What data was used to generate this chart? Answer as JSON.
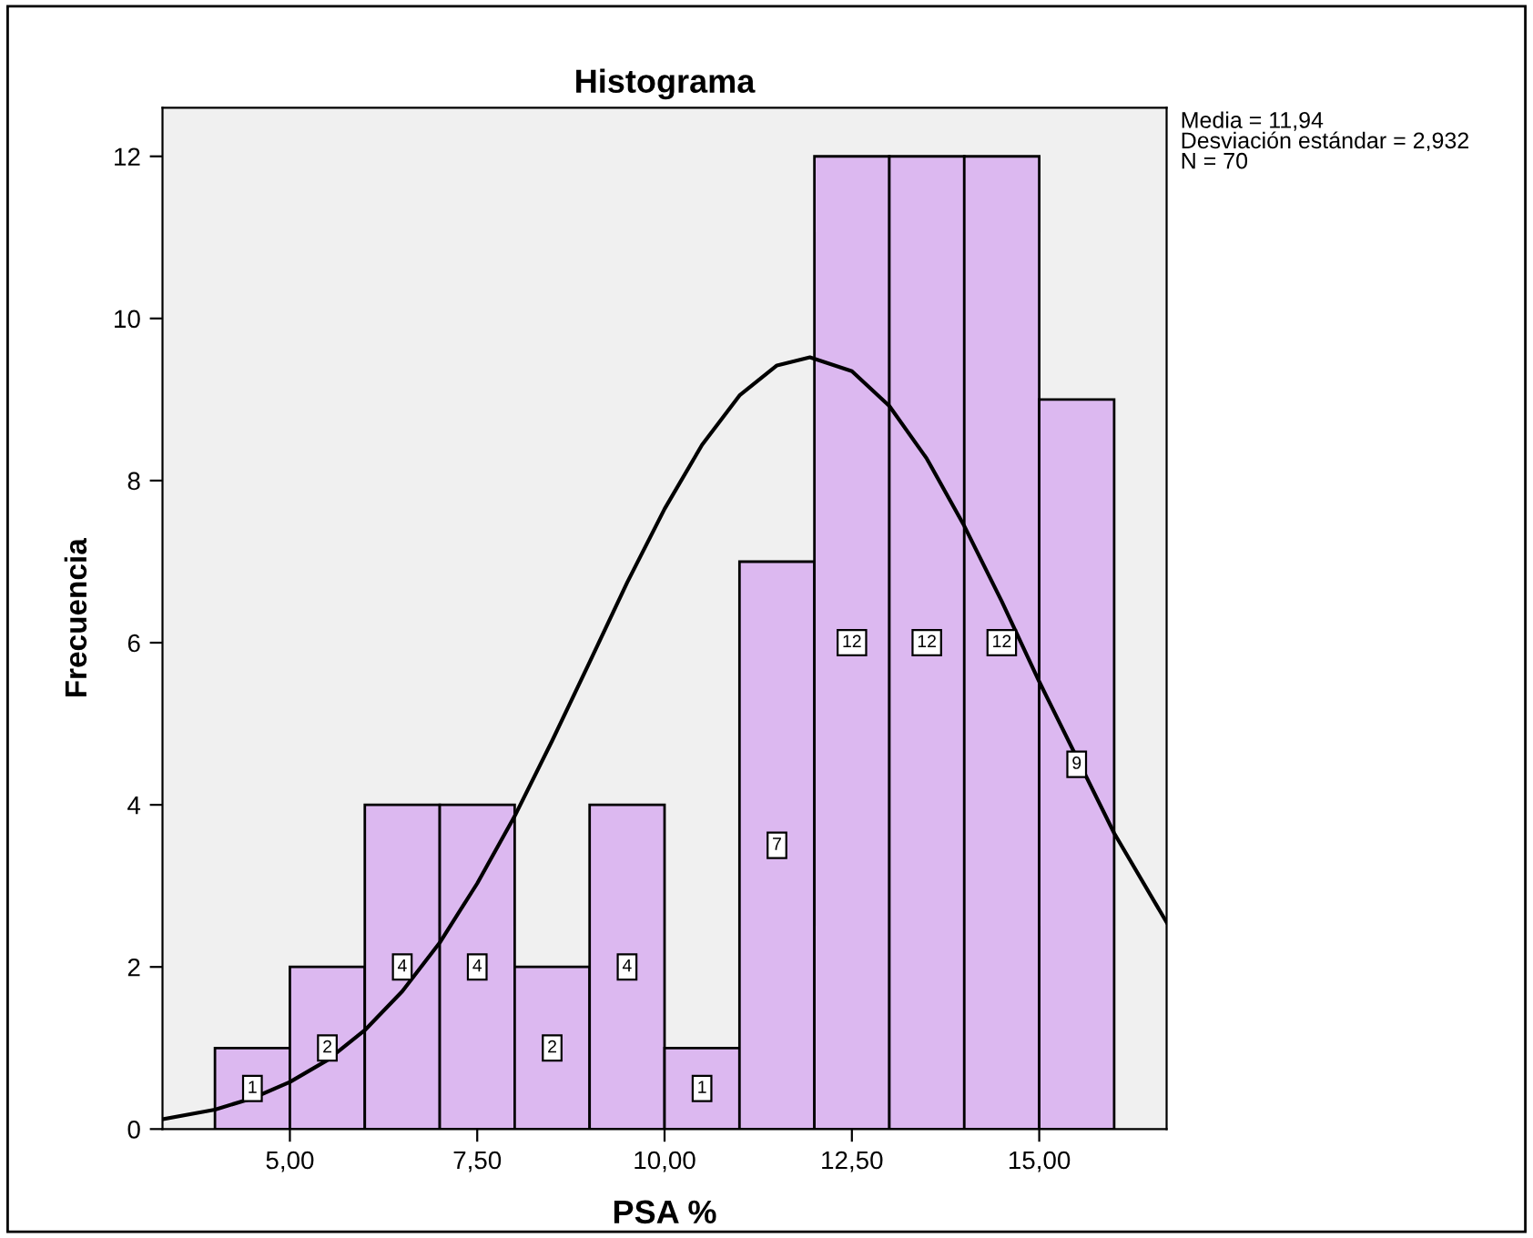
{
  "chart_data": {
    "type": "histogram",
    "title": "Histograma",
    "xlabel": "PSA %",
    "ylabel": "Frecuencia",
    "bins": [
      4,
      5,
      6,
      7,
      8,
      9,
      10,
      11,
      12,
      13,
      14,
      15,
      16
    ],
    "values": [
      1,
      2,
      4,
      4,
      2,
      4,
      1,
      7,
      12,
      12,
      12,
      9
    ],
    "color": "#dcb8f0",
    "value_labels": [
      "1",
      "2",
      "4",
      "4",
      "2",
      "4",
      "1",
      "7",
      "12",
      "12",
      "12",
      "9"
    ],
    "grid": false,
    "legend": false,
    "series": [
      {
        "type": "line",
        "color": "#000000",
        "marker": "none",
        "x": [
          3.3,
          4,
          4.5,
          5,
          5.5,
          6,
          6.5,
          7,
          7.5,
          8,
          8.5,
          9,
          9.5,
          10,
          10.5,
          11,
          11.5,
          11.94,
          12.5,
          13,
          13.5,
          14,
          14.5,
          15,
          16,
          16.7
        ],
        "values": [
          0.12,
          0.24,
          0.38,
          0.58,
          0.85,
          1.22,
          1.7,
          2.3,
          3.03,
          3.86,
          4.79,
          5.76,
          6.74,
          7.65,
          8.44,
          9.05,
          9.42,
          9.52,
          9.35,
          8.92,
          8.27,
          7.44,
          6.51,
          5.52,
          3.65,
          2.55
        ]
      }
    ],
    "xlim": [
      3.3,
      16.7
    ],
    "ylim": [
      0,
      12.6
    ],
    "xticks": [
      {
        "value": 5,
        "label": "5,00"
      },
      {
        "value": 7.5,
        "label": "7,50"
      },
      {
        "value": 10,
        "label": "10,00"
      },
      {
        "value": 12.5,
        "label": "12,50"
      },
      {
        "value": 15,
        "label": "15,00"
      }
    ],
    "yticks": [
      0,
      2,
      4,
      6,
      8,
      10,
      12
    ],
    "annotations": [
      "Media = 11,94\nDesviación estándar = 2,932\nN = 70"
    ]
  }
}
